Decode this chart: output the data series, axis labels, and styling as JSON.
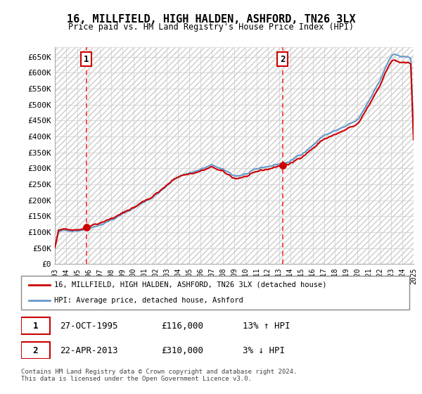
{
  "title": "16, MILLFIELD, HIGH HALDEN, ASHFORD, TN26 3LX",
  "subtitle": "Price paid vs. HM Land Registry's House Price Index (HPI)",
  "ylabel_ticks": [
    "£0",
    "£50K",
    "£100K",
    "£150K",
    "£200K",
    "£250K",
    "£300K",
    "£350K",
    "£400K",
    "£450K",
    "£500K",
    "£550K",
    "£600K",
    "£650K"
  ],
  "ytick_values": [
    0,
    50000,
    100000,
    150000,
    200000,
    250000,
    300000,
    350000,
    400000,
    450000,
    500000,
    550000,
    600000,
    650000
  ],
  "ylim": [
    0,
    680000
  ],
  "purchase1_date": 1995.82,
  "purchase1_price": 116000,
  "purchase2_date": 2013.31,
  "purchase2_price": 310000,
  "legend_line1": "16, MILLFIELD, HIGH HALDEN, ASHFORD, TN26 3LX (detached house)",
  "legend_line2": "HPI: Average price, detached house, Ashford",
  "table_row1_label": "1",
  "table_row1_date": "27-OCT-1995",
  "table_row1_price": "£116,000",
  "table_row1_hpi": "13% ↑ HPI",
  "table_row2_label": "2",
  "table_row2_date": "22-APR-2013",
  "table_row2_price": "£310,000",
  "table_row2_hpi": "3% ↓ HPI",
  "footer": "Contains HM Land Registry data © Crown copyright and database right 2024.\nThis data is licensed under the Open Government Licence v3.0.",
  "hpi_color": "#6699cc",
  "price_color": "#cc0000",
  "vline_color": "#ee3333",
  "grid_color": "#cccccc"
}
